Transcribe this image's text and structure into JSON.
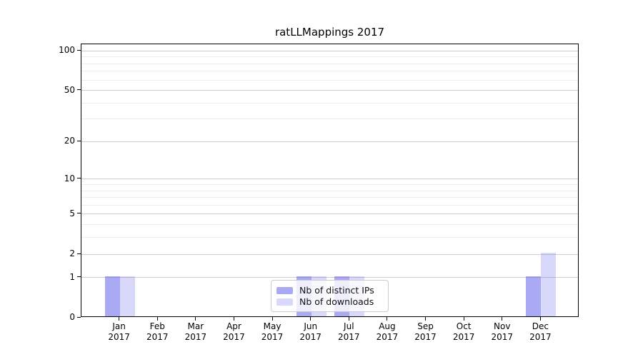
{
  "title": "ratLLMappings 2017",
  "y_axis": {
    "scale": "log1p",
    "major_ticks": [
      {
        "value": 0,
        "label": "0"
      },
      {
        "value": 1,
        "label": "1"
      },
      {
        "value": 2,
        "label": "2"
      },
      {
        "value": 5,
        "label": "5"
      },
      {
        "value": 10,
        "label": "10"
      },
      {
        "value": 20,
        "label": "20"
      },
      {
        "value": 50,
        "label": "50"
      },
      {
        "value": 100,
        "label": "100"
      }
    ],
    "minor_ticks": [
      3,
      4,
      6,
      7,
      8,
      9,
      30,
      40,
      60,
      70,
      80,
      90
    ]
  },
  "x_axis": {
    "months": [
      {
        "month": "Jan",
        "year": "2017"
      },
      {
        "month": "Feb",
        "year": "2017"
      },
      {
        "month": "Mar",
        "year": "2017"
      },
      {
        "month": "Apr",
        "year": "2017"
      },
      {
        "month": "May",
        "year": "2017"
      },
      {
        "month": "Jun",
        "year": "2017"
      },
      {
        "month": "Jul",
        "year": "2017"
      },
      {
        "month": "Aug",
        "year": "2017"
      },
      {
        "month": "Sep",
        "year": "2017"
      },
      {
        "month": "Oct",
        "year": "2017"
      },
      {
        "month": "Nov",
        "year": "2017"
      },
      {
        "month": "Dec",
        "year": "2017"
      }
    ]
  },
  "legend": {
    "items": [
      {
        "label": "Nb of distinct IPs",
        "color": "rgba(100,100,235,0.55)"
      },
      {
        "label": "Nb of downloads",
        "color": "rgba(100,100,235,0.25)"
      }
    ]
  },
  "chart_data": {
    "type": "bar",
    "title": "ratLLMappings 2017",
    "categories": [
      "Jan 2017",
      "Feb 2017",
      "Mar 2017",
      "Apr 2017",
      "May 2017",
      "Jun 2017",
      "Jul 2017",
      "Aug 2017",
      "Sep 2017",
      "Oct 2017",
      "Nov 2017",
      "Dec 2017"
    ],
    "series": [
      {
        "name": "Nb of distinct IPs",
        "color": "rgba(100,100,235,0.55)",
        "values": [
          1,
          0,
          0,
          0,
          0,
          1,
          1,
          0,
          0,
          0,
          0,
          1
        ]
      },
      {
        "name": "Nb of downloads",
        "color": "rgba(100,100,235,0.25)",
        "values": [
          1,
          0,
          0,
          0,
          0,
          1,
          1,
          0,
          0,
          0,
          0,
          2
        ]
      }
    ],
    "y_scale": "log1p",
    "y_ticks": [
      0,
      1,
      2,
      5,
      10,
      20,
      50,
      100
    ],
    "ylim": [
      0,
      112
    ],
    "grid": "horizontal",
    "legend_position": "lower-center"
  },
  "colors": {
    "major_grid": "#cccccc",
    "minor_grid": "#ededed",
    "spine": "#000000",
    "text": "#000000",
    "legend_border": "#cccccc",
    "legend_bg": "rgba(255,255,255,0.8)"
  }
}
